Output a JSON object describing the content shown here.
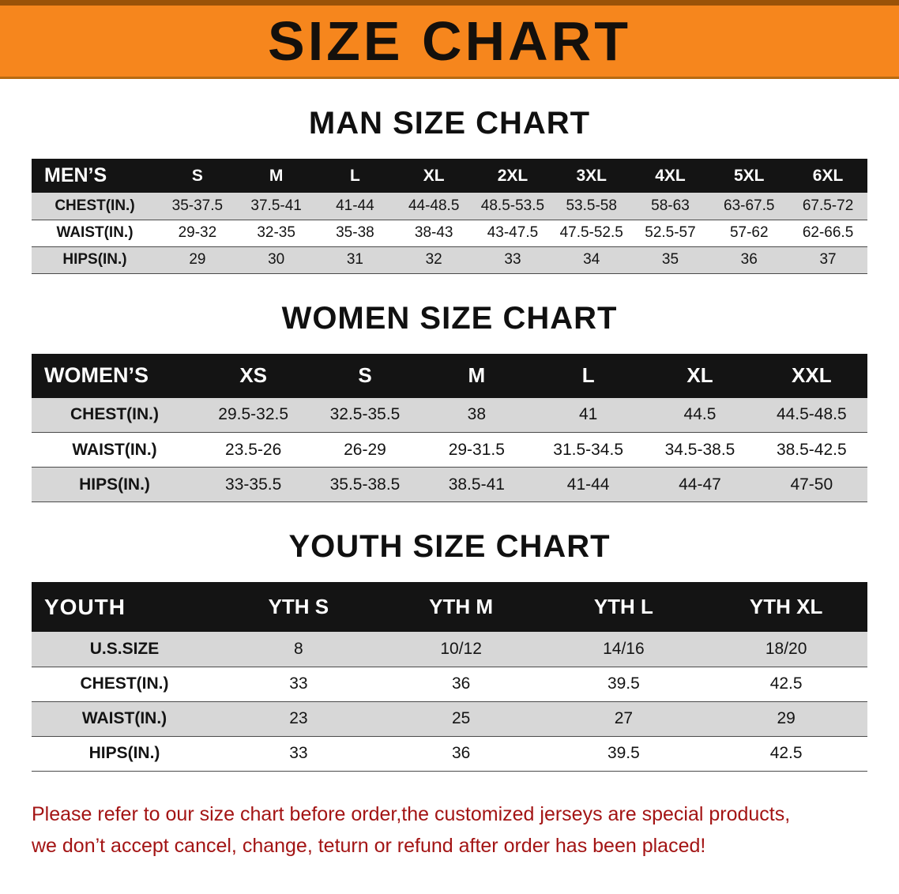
{
  "banner": {
    "title": "SIZE CHART"
  },
  "sections": {
    "men": {
      "heading": "MAN SIZE CHART",
      "table": {
        "header": [
          "MEN’S",
          "S",
          "M",
          "L",
          "XL",
          "2XL",
          "3XL",
          "4XL",
          "5XL",
          "6XL"
        ],
        "rows": [
          [
            "CHEST(IN.)",
            "35-37.5",
            "37.5-41",
            "41-44",
            "44-48.5",
            "48.5-53.5",
            "53.5-58",
            "58-63",
            "63-67.5",
            "67.5-72"
          ],
          [
            "WAIST(IN.)",
            "29-32",
            "32-35",
            "35-38",
            "38-43",
            "43-47.5",
            "47.5-52.5",
            "52.5-57",
            "57-62",
            "62-66.5"
          ],
          [
            "HIPS(IN.)",
            "29",
            "30",
            "31",
            "32",
            "33",
            "34",
            "35",
            "36",
            "37"
          ]
        ]
      }
    },
    "women": {
      "heading": "WOMEN SIZE CHART",
      "table": {
        "header": [
          "WOMEN’S",
          "XS",
          "S",
          "M",
          "L",
          "XL",
          "XXL"
        ],
        "rows": [
          [
            "CHEST(IN.)",
            "29.5-32.5",
            "32.5-35.5",
            "38",
            "41",
            "44.5",
            "44.5-48.5"
          ],
          [
            "WAIST(IN.)",
            "23.5-26",
            "26-29",
            "29-31.5",
            "31.5-34.5",
            "34.5-38.5",
            "38.5-42.5"
          ],
          [
            "HIPS(IN.)",
            "33-35.5",
            "35.5-38.5",
            "38.5-41",
            "41-44",
            "44-47",
            "47-50"
          ]
        ]
      }
    },
    "youth": {
      "heading": "YOUTH SIZE CHART",
      "table": {
        "header": [
          "YOUTH",
          "YTH S",
          "YTH M",
          "YTH L",
          "YTH XL"
        ],
        "rows": [
          [
            "U.S.SIZE",
            "8",
            "10/12",
            "14/16",
            "18/20"
          ],
          [
            "CHEST(IN.)",
            "33",
            "36",
            "39.5",
            "42.5"
          ],
          [
            "WAIST(IN.)",
            "23",
            "25",
            "27",
            "29"
          ],
          [
            "HIPS(IN.)",
            "33",
            "36",
            "39.5",
            "42.5"
          ]
        ]
      }
    }
  },
  "footer": {
    "line1": "Please refer to our size chart before order,the customized jerseys are special products,",
    "line2": "we don’t accept cancel, change, teturn or refund after order has been placed!"
  },
  "colors": {
    "banner_bg": "#F6861D",
    "header_bg": "#141414",
    "row_alt_bg": "#D7D7D7",
    "note_red": "#A31414"
  }
}
